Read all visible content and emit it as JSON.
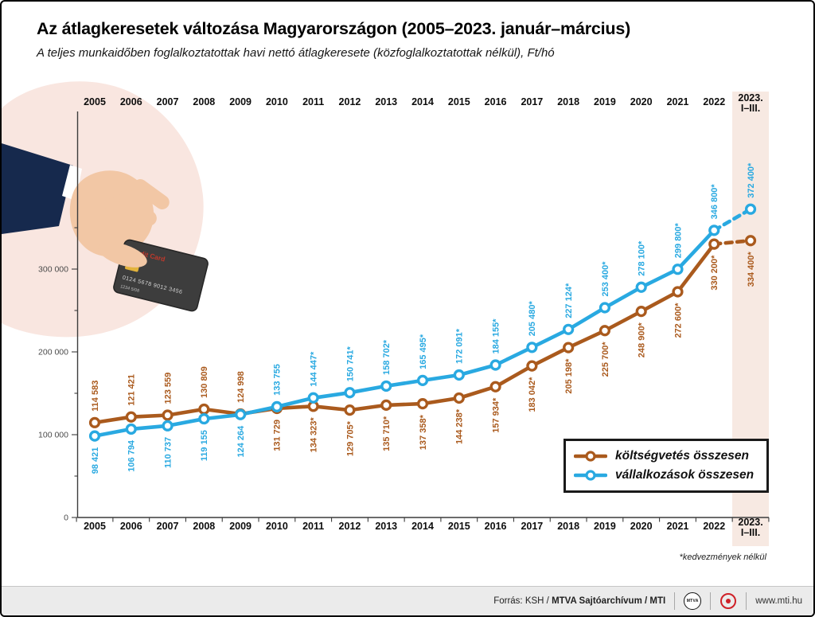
{
  "header": {
    "title": "Az átlagkeresetek változása Magyarországon (2005–2023. január–március)",
    "subtitle": "A teljes munkaidőben foglalkoztatottak havi nettó átlagkeresete (közfoglalkoztatottak nélkül), Ft/hó"
  },
  "chart_data": {
    "type": "line",
    "categories": [
      "2005",
      "2006",
      "2007",
      "2008",
      "2009",
      "2010",
      "2011",
      "2012",
      "2013",
      "2014",
      "2015",
      "2016",
      "2017",
      "2018",
      "2019",
      "2020",
      "2021",
      "2022",
      "2023.\nI–III."
    ],
    "series": [
      {
        "name": "költségvetés összesen",
        "color": "#aa5a1d",
        "values": [
          114583,
          121421,
          123559,
          130809,
          124998,
          131729,
          134323,
          129705,
          135710,
          137358,
          144238,
          157934,
          183042,
          205198,
          225700,
          248900,
          272600,
          330200,
          334400
        ],
        "labels": [
          "114 583",
          "121 421",
          "123 559",
          "130 809",
          "124 998",
          "131 729",
          "134 323*",
          "129 705*",
          "135 710*",
          "137 358*",
          "144 238*",
          "157 934*",
          "183 042*",
          "205 198*",
          "225 700*",
          "248 900*",
          "272 600*",
          "330 200*",
          "334 400*"
        ],
        "last_segment": "dashed"
      },
      {
        "name": "vállalkozások összesen",
        "color": "#29a9e1",
        "values": [
          98421,
          106794,
          110737,
          119155,
          124264,
          133755,
          144447,
          150741,
          158702,
          165495,
          172091,
          184155,
          205480,
          227124,
          253400,
          278100,
          299800,
          346800,
          372400
        ],
        "labels": [
          "98 421",
          "106 794",
          "110 737",
          "119 155",
          "124 264",
          "133 755",
          "144 447*",
          "150 741*",
          "158 702*",
          "165 495*",
          "172 091*",
          "184 155*",
          "205 480*",
          "227 124*",
          "253 400*",
          "278 100*",
          "299 800*",
          "346 800*",
          "372 400*"
        ],
        "last_segment": "dashed"
      }
    ],
    "y_ticks": [
      {
        "value": 0,
        "label": "0"
      },
      {
        "value": 100000,
        "label": "100 000"
      },
      {
        "value": 200000,
        "label": "200 000"
      },
      {
        "value": 300000,
        "label": "300 000"
      }
    ],
    "ylim": [
      0,
      400000
    ],
    "unit": "Ft/hó",
    "grid": "off",
    "legend_position": "bottom-right",
    "highlight_last_category": true,
    "highlight_color": "#f7e9e2",
    "footnote": "*kedvezmények nélkül"
  },
  "illustration": {
    "card_brand": "Credit Card",
    "card_number": "0124 5678 9012 3456",
    "card_line2": "1234 5/08"
  },
  "footer": {
    "source_prefix": "Forrás: KSH / ",
    "source_bold": "MTVA Sajtóarchívum / MTI",
    "mtva_logo_text": "MTVA",
    "website": "www.mti.hu"
  }
}
